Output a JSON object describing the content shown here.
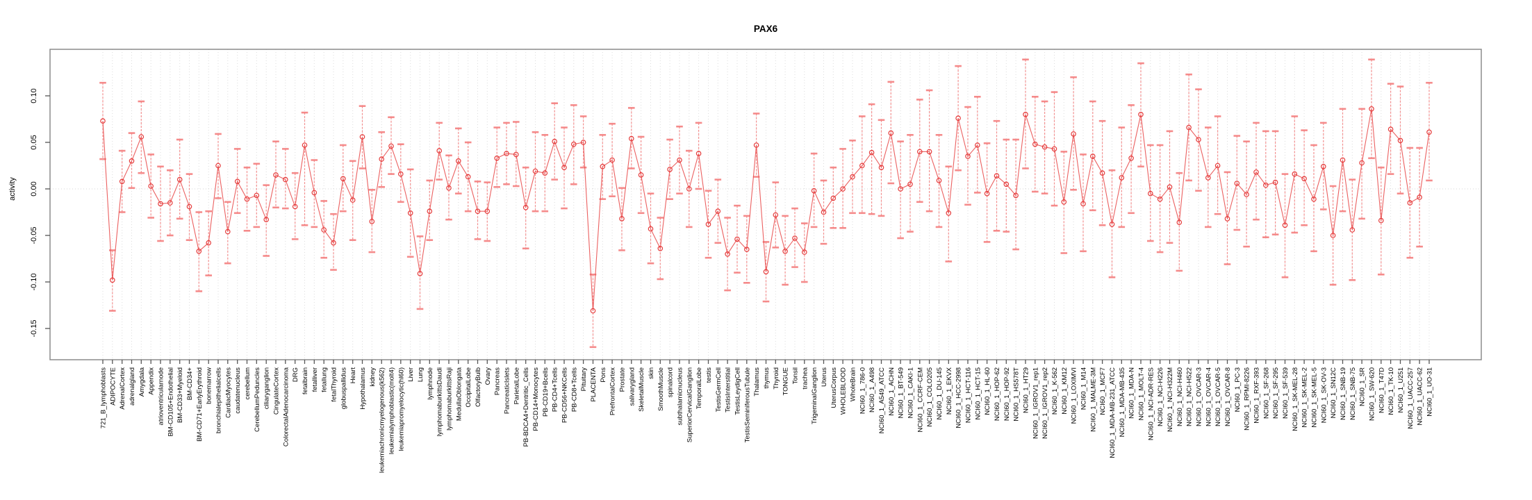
{
  "window": {
    "background": "#ffffff"
  },
  "chart_data": {
    "type": "line",
    "title": "PAX6",
    "xlabel": "",
    "ylabel": "activity",
    "ylim": [
      -0.18,
      0.15
    ],
    "yticks": [
      0.1,
      0.05,
      0.0,
      -0.05,
      -0.1,
      -0.15
    ],
    "ytick_labels": [
      "0.10",
      "0.05",
      "0.00",
      "-0.05",
      "-0.10",
      "-0.15"
    ],
    "grid": "vertical dotted line per sample; dotted horizontal line at 0",
    "legend_position": "none",
    "marker": "open-circle",
    "error_bars": true,
    "colors": {
      "series": "#e94f4f",
      "marker": "#e53b3b",
      "error_bar": "#f47f7f",
      "gridline": "#dcdcdc",
      "zero_line": "#d4d4d4",
      "box": "#8c8c8c",
      "text": "#000000"
    },
    "categories": [
      "721_B_lymphoblasts",
      "ADIPOCYTE",
      "AdrenalCortex",
      "adrenalgland",
      "Amygdala",
      "Appendix",
      "atrioventricularnode",
      "BM-CD105+Endothelial",
      "BM-CD33+Myeloid",
      "BM-CD34+",
      "BM-CD71+EarlyErythroid",
      "bonemarrow",
      "bronchialepithelialcells",
      "CardiacMyocytes",
      "caudatenucleus",
      "cerebellum",
      "CerebellumPeduncles",
      "ciliaryganglion",
      "CingulateCortex",
      "ColorectalAdenocarcinoma",
      "DRG",
      "fetalbrain",
      "fetalliver",
      "fetallung",
      "fetalThyroid",
      "globuspallidus",
      "Heart",
      "Hypothalamus",
      "kidney",
      "leukemiachronicmyelogenous(k562)",
      "leukemialymphoblastic(molt4)",
      "leukemiapromyelocytic(hl60)",
      "Liver",
      "Lung",
      "lymphnode",
      "lymphomaburkittsDaudi",
      "lymphomaburkittsRaji",
      "MedullaOblongata",
      "OccipitalLobe",
      "OlfactoryBulb",
      "Ovary",
      "Pancreas",
      "PancreaticIslets",
      "ParietalLobe",
      "PB-BDCA4+Dentritic_Cells",
      "PB-CD14+Monocytes",
      "PB-CD19+Bcells",
      "PB-CD4+Tcells",
      "PB-CD56+NKCells",
      "PB-CD8+Tcells",
      "Pituitary",
      "PLACENTA",
      "Pons",
      "PrefrontalCortex",
      "Prostate",
      "salivarygland",
      "SkeletalMuscle",
      "skin",
      "SmoothMuscle",
      "spinalcord",
      "subthalamicnucleus",
      "SuperiorCervicalGanglion",
      "TemporalLobe",
      "testis",
      "TestisGermCell",
      "TestisInterstitial",
      "TestisLeydigCell",
      "TestisSeminiferousTubule",
      "Thalamus",
      "thymus",
      "Thyroid",
      "TONGUE",
      "Tonsil",
      "trachea",
      "TrigeminalGanglion",
      "Uterus",
      "UterusCorpus",
      "WHOLEBLOOD",
      "WholeBrain",
      "NCI60_1_786-0",
      "NCI60_1_A498",
      "NCI60_1_A549_ATCC",
      "NCI60_1_ACHN",
      "NCI60_1_BT-549",
      "NCI60_1_CAKI-1",
      "NCI60_1_CCRF-CEM",
      "NCI60_1_COLO205",
      "NCI60_1_DU-145",
      "NCI60_1_EKVX",
      "NCI60_1_HCC-2998",
      "NCI60_1_HCT-116",
      "NCI60_1_HCT-15",
      "NCI60_1_HL-60",
      "NCI60_1_HOP-62",
      "NCI60_1_HOP-92",
      "NCI60_1_HS578T",
      "NCI60_1_HT29",
      "NCI60_1_IGROV1_rep1",
      "NCI60_1_IGROV1_rep2",
      "NCI60_1_K-562",
      "NCI60_1_KM12",
      "NCI60_1_LOXIMVI",
      "NCI60_1_M14",
      "NCI60_1_MALME-3M",
      "NCI60_1_MCF7",
      "NCI60_1_MDA-MB-231_ATCC",
      "NCI60_1_MDA-MB-435",
      "NCI60_1_MDA-N",
      "NCI60_1_MOLT-4",
      "NCI60_1_NCI-ADR-RES",
      "NCI60_1_NCI-H226",
      "NCI60_1_NCI-H322M",
      "NCI60_1_NCI-H460",
      "NCI60_1_NCI-H522",
      "NCI60_1_OVCAR-3",
      "NCI60_1_OVCAR-4",
      "NCI60_1_OVCAR-5",
      "NCI60_1_OVCAR-8",
      "NCI60_1_PC-3",
      "NCI60_1_RPMI-8226",
      "NCI60_1_RXF-393",
      "NCI60_1_SF-268",
      "NCI60_1_SF-295",
      "NCI60_1_SF-539",
      "NCI60_1_SK-MEL-28",
      "NCI60_1_SK-MEL-2",
      "NCI60_1_SK-MEL-5",
      "NCI60_1_SK-OV-3",
      "NCI60_1_SN12C",
      "NCI60_1_SNB-19",
      "NCI60_1_SNB-75",
      "NCI60_1_SR",
      "NCI60_1_SW-620",
      "NCI60_1_T47D",
      "NCI60_1_TK-10",
      "NCI60_1_U251",
      "NCI60_1_UACC-257",
      "NCI60_1_UACC-62",
      "NCI60_1_UO-31"
    ],
    "series": [
      {
        "name": "activity",
        "values": [
          0.073,
          -0.098,
          0.008,
          0.03,
          0.056,
          0.003,
          -0.016,
          -0.015,
          0.01,
          -0.019,
          -0.067,
          -0.058,
          0.025,
          -0.046,
          0.008,
          -0.011,
          -0.007,
          -0.033,
          0.015,
          0.01,
          -0.019,
          0.047,
          -0.004,
          -0.044,
          -0.058,
          0.011,
          -0.012,
          0.056,
          -0.035,
          0.032,
          0.046,
          0.016,
          -0.026,
          -0.091,
          -0.024,
          0.041,
          0.001,
          0.03,
          0.013,
          -0.024,
          -0.024,
          0.033,
          0.038,
          0.037,
          -0.02,
          0.019,
          0.017,
          0.051,
          0.023,
          0.048,
          0.05,
          -0.131,
          0.024,
          0.031,
          -0.032,
          0.054,
          0.015,
          -0.043,
          -0.064,
          0.021,
          0.031,
          0.0,
          0.038,
          -0.038,
          -0.024,
          -0.07,
          -0.054,
          -0.065,
          0.047,
          -0.089,
          -0.028,
          -0.067,
          -0.053,
          -0.068,
          -0.002,
          -0.025,
          -0.01,
          0.0,
          0.013,
          0.025,
          0.039,
          0.023,
          0.06,
          0.0,
          0.005,
          0.04,
          0.04,
          0.009,
          -0.026,
          0.076,
          0.035,
          0.047,
          -0.005,
          0.014,
          0.005,
          -0.007,
          0.08,
          0.048,
          0.045,
          0.043,
          -0.014,
          0.059,
          -0.016,
          0.035,
          0.017,
          -0.038,
          0.012,
          0.033,
          0.08,
          -0.005,
          -0.011,
          0.002,
          -0.036,
          0.066,
          0.053,
          0.012,
          0.025,
          -0.032,
          0.006,
          -0.006,
          0.018,
          0.004,
          0.007,
          -0.039,
          0.016,
          0.011,
          -0.011,
          0.024,
          -0.05,
          0.031,
          -0.044,
          0.028,
          0.086,
          -0.034,
          0.064,
          0.052,
          -0.015,
          -0.009,
          0.061
        ]
      }
    ],
    "error_low": [
      0.032,
      -0.131,
      -0.025,
      0.001,
      0.017,
      -0.031,
      -0.056,
      -0.05,
      -0.032,
      -0.055,
      -0.11,
      -0.093,
      -0.01,
      -0.08,
      -0.026,
      -0.045,
      -0.041,
      -0.072,
      -0.02,
      -0.021,
      -0.054,
      -0.039,
      -0.041,
      -0.074,
      -0.087,
      -0.024,
      -0.055,
      0.022,
      -0.068,
      0.002,
      0.016,
      -0.014,
      -0.073,
      -0.129,
      -0.055,
      0.01,
      -0.033,
      -0.005,
      -0.024,
      -0.054,
      -0.056,
      0.002,
      0.005,
      0.003,
      -0.064,
      -0.024,
      -0.024,
      0.01,
      -0.021,
      0.005,
      0.023,
      -0.17,
      -0.011,
      -0.008,
      -0.066,
      0.022,
      -0.026,
      -0.08,
      -0.097,
      -0.011,
      -0.005,
      -0.041,
      0.0,
      -0.074,
      -0.058,
      -0.109,
      -0.09,
      -0.101,
      0.013,
      -0.121,
      -0.063,
      -0.103,
      -0.084,
      -0.1,
      -0.041,
      -0.059,
      -0.042,
      -0.042,
      -0.026,
      -0.026,
      -0.027,
      -0.029,
      0.006,
      -0.053,
      -0.046,
      -0.014,
      -0.024,
      -0.041,
      -0.078,
      0.02,
      -0.017,
      -0.004,
      -0.057,
      -0.045,
      -0.046,
      -0.065,
      0.022,
      -0.003,
      -0.005,
      -0.018,
      -0.069,
      -0.001,
      -0.067,
      -0.023,
      -0.039,
      -0.095,
      -0.041,
      -0.026,
      0.024,
      -0.056,
      -0.068,
      -0.058,
      -0.088,
      0.009,
      -0.002,
      -0.041,
      -0.027,
      -0.081,
      -0.044,
      -0.062,
      -0.033,
      -0.052,
      -0.049,
      -0.095,
      -0.047,
      -0.039,
      -0.067,
      -0.022,
      -0.103,
      -0.024,
      -0.098,
      -0.032,
      0.033,
      -0.092,
      0.016,
      -0.005,
      -0.074,
      -0.062,
      0.009
    ],
    "error_high": [
      0.114,
      -0.066,
      0.041,
      0.06,
      0.094,
      0.037,
      0.024,
      0.02,
      0.053,
      0.016,
      -0.025,
      -0.024,
      0.059,
      -0.014,
      0.043,
      0.023,
      0.027,
      0.004,
      0.051,
      0.043,
      0.017,
      0.082,
      0.031,
      -0.013,
      -0.027,
      0.047,
      0.03,
      0.089,
      -0.001,
      0.061,
      0.077,
      0.048,
      0.021,
      -0.051,
      0.009,
      0.071,
      0.036,
      0.065,
      0.05,
      0.008,
      0.007,
      0.066,
      0.071,
      0.072,
      0.023,
      0.061,
      0.058,
      0.092,
      0.066,
      0.09,
      0.078,
      -0.092,
      0.058,
      0.07,
      0.001,
      0.087,
      0.056,
      -0.005,
      -0.031,
      0.053,
      0.067,
      0.041,
      0.071,
      -0.002,
      0.01,
      -0.031,
      -0.018,
      -0.029,
      0.081,
      -0.057,
      0.007,
      -0.029,
      -0.021,
      -0.037,
      0.038,
      0.009,
      0.023,
      0.043,
      0.052,
      0.078,
      0.091,
      0.074,
      0.115,
      0.051,
      0.058,
      0.096,
      0.106,
      0.058,
      0.024,
      0.132,
      0.088,
      0.099,
      0.049,
      0.073,
      0.053,
      0.053,
      0.139,
      0.099,
      0.094,
      0.104,
      0.04,
      0.12,
      0.037,
      0.094,
      0.073,
      0.02,
      0.066,
      0.09,
      0.135,
      0.047,
      0.047,
      0.062,
      0.017,
      0.123,
      0.107,
      0.066,
      0.078,
      0.018,
      0.057,
      0.051,
      0.071,
      0.062,
      0.062,
      0.016,
      0.078,
      0.063,
      0.047,
      0.071,
      0.003,
      0.086,
      0.01,
      0.086,
      0.139,
      0.023,
      0.113,
      0.11,
      0.044,
      0.044,
      0.114
    ]
  }
}
